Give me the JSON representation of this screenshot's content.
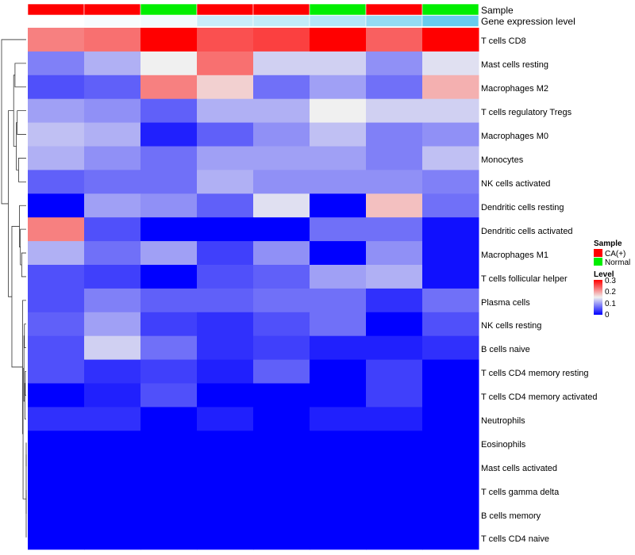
{
  "chart_data": {
    "type": "heatmap",
    "title": "",
    "annotations": [
      {
        "name": "Sample",
        "values": [
          "CA(+)",
          "CA(+)",
          "Normal",
          "CA(+)",
          "CA(+)",
          "Normal",
          "CA(+)",
          "Normal"
        ]
      },
      {
        "name": "Gene expression level",
        "values": [
          0.0,
          0.05,
          0.1,
          0.35,
          0.4,
          0.5,
          0.7,
          1.0
        ]
      }
    ],
    "rows": [
      {
        "label": "T cells CD8",
        "values": [
          0.22,
          0.23,
          0.3,
          0.25,
          0.26,
          0.3,
          0.24,
          0.3
        ]
      },
      {
        "label": "Mast cells resting",
        "values": [
          0.08,
          0.11,
          0.15,
          0.23,
          0.13,
          0.13,
          0.09,
          0.14
        ]
      },
      {
        "label": "Macrophages M2",
        "values": [
          0.05,
          0.06,
          0.22,
          0.17,
          0.07,
          0.1,
          0.07,
          0.19
        ]
      },
      {
        "label": "T cells regulatory  Tregs",
        "values": [
          0.1,
          0.09,
          0.06,
          0.11,
          0.11,
          0.15,
          0.13,
          0.13
        ]
      },
      {
        "label": "Macrophages M0",
        "values": [
          0.12,
          0.11,
          0.02,
          0.06,
          0.09,
          0.12,
          0.08,
          0.09
        ]
      },
      {
        "label": "Monocytes",
        "values": [
          0.11,
          0.09,
          0.07,
          0.1,
          0.1,
          0.1,
          0.08,
          0.12
        ]
      },
      {
        "label": "NK cells activated",
        "values": [
          0.06,
          0.07,
          0.07,
          0.11,
          0.09,
          0.09,
          0.09,
          0.08
        ]
      },
      {
        "label": "Dendritic cells resting",
        "values": [
          0.0,
          0.1,
          0.09,
          0.06,
          0.14,
          0.0,
          0.18,
          0.07
        ]
      },
      {
        "label": "Dendritic cells activated",
        "values": [
          0.22,
          0.05,
          0.0,
          0.0,
          0.0,
          0.07,
          0.07,
          0.01
        ]
      },
      {
        "label": "Macrophages M1",
        "values": [
          0.11,
          0.07,
          0.1,
          0.04,
          0.09,
          0.0,
          0.09,
          0.01
        ]
      },
      {
        "label": "T cells follicular helper",
        "values": [
          0.05,
          0.04,
          0.0,
          0.05,
          0.06,
          0.1,
          0.11,
          0.01
        ]
      },
      {
        "label": "Plasma cells",
        "values": [
          0.05,
          0.08,
          0.06,
          0.06,
          0.07,
          0.07,
          0.03,
          0.07
        ]
      },
      {
        "label": "NK cells resting",
        "values": [
          0.06,
          0.1,
          0.04,
          0.03,
          0.05,
          0.07,
          0.0,
          0.05
        ]
      },
      {
        "label": "B cells naive",
        "values": [
          0.05,
          0.13,
          0.07,
          0.03,
          0.04,
          0.02,
          0.02,
          0.03
        ]
      },
      {
        "label": "T cells CD4 memory resting",
        "values": [
          0.05,
          0.03,
          0.04,
          0.02,
          0.06,
          0.0,
          0.04,
          0.0
        ]
      },
      {
        "label": "T cells CD4 memory activated",
        "values": [
          0.0,
          0.02,
          0.05,
          0.0,
          0.0,
          0.0,
          0.04,
          0.0
        ]
      },
      {
        "label": "Neutrophils",
        "values": [
          0.03,
          0.03,
          0.0,
          0.02,
          0.0,
          0.02,
          0.02,
          0.0
        ]
      },
      {
        "label": "Eosinophils",
        "values": [
          0.0,
          0.0,
          0.0,
          0.0,
          0.0,
          0.0,
          0.0,
          0.0
        ]
      },
      {
        "label": "Mast cells activated",
        "values": [
          0.0,
          0.0,
          0.0,
          0.0,
          0.0,
          0.0,
          0.0,
          0.0
        ]
      },
      {
        "label": "T cells gamma delta",
        "values": [
          0.0,
          0.0,
          0.0,
          0.0,
          0.0,
          0.0,
          0.0,
          0.0
        ]
      },
      {
        "label": "B cells memory",
        "values": [
          0.0,
          0.0,
          0.0,
          0.0,
          0.0,
          0.0,
          0.0,
          0.0
        ]
      },
      {
        "label": "T cells CD4 naive",
        "values": [
          0.0,
          0.0,
          0.0,
          0.0,
          0.0,
          0.0,
          0.0,
          0.0
        ]
      }
    ],
    "color_scale": {
      "min": 0,
      "mid": 0.15,
      "max": 0.3,
      "low": "#0000ff",
      "mid_color": "#f0f0f0",
      "high": "#ff0000"
    },
    "legends": {
      "sample": {
        "title": "Sample",
        "entries": [
          {
            "label": "CA(+)",
            "color": "#ff0000"
          },
          {
            "label": "Normal",
            "color": "#00ee00"
          }
        ]
      },
      "level": {
        "title": "Level",
        "ticks": [
          {
            "value": 0.3,
            "label": "0.3"
          },
          {
            "value": 0.2,
            "label": "0.2"
          },
          {
            "value": 0.1,
            "label": "0.1"
          },
          {
            "value": 0,
            "label": "0"
          }
        ]
      }
    },
    "gene_expression_colors": {
      "low": "#ffffff",
      "high": "#66ccee"
    },
    "dendrogram": [
      [
        17,
        18,
        0.0
      ],
      [
        19,
        20,
        0.0
      ],
      [
        -1,
        21,
        0.0
      ],
      [
        -2,
        -3,
        0.0
      ],
      [
        14,
        15,
        0.02
      ],
      [
        -5,
        16,
        0.03
      ],
      [
        12,
        13,
        0.04
      ],
      [
        -7,
        -6,
        0.05
      ],
      [
        -8,
        -4,
        0.07
      ],
      [
        11,
        -9,
        0.08
      ],
      [
        9,
        10,
        0.1
      ],
      [
        -11,
        8,
        0.13
      ],
      [
        -12,
        7,
        0.15
      ],
      [
        5,
        6,
        0.17
      ],
      [
        3,
        4,
        0.2
      ],
      [
        -15,
        -14,
        0.22
      ],
      [
        1,
        2,
        0.25
      ],
      [
        -17,
        -16,
        0.28
      ],
      [
        -13,
        -10,
        0.32
      ],
      [
        -19,
        -18,
        0.4
      ],
      [
        0,
        -20,
        0.55
      ]
    ]
  }
}
